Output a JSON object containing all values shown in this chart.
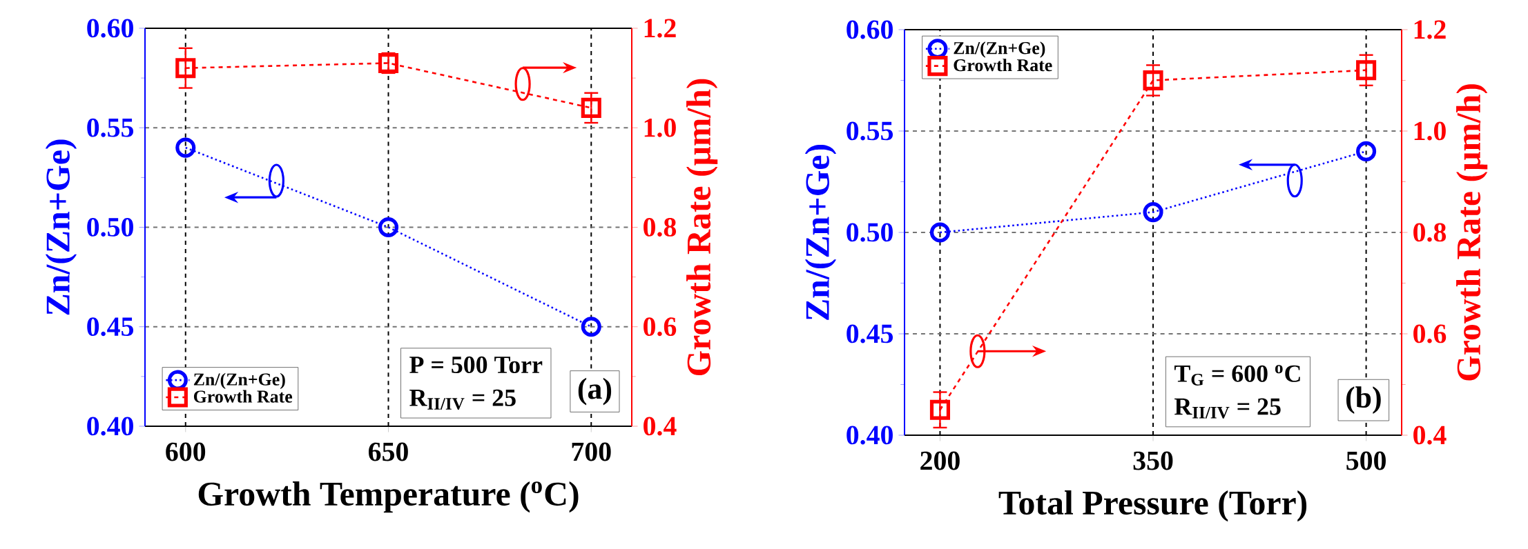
{
  "chart_data": [
    {
      "type": "line",
      "xlabel": "Growth Temperature ($^{o}$C)",
      "ylabel": "Zn/(Zn+Ge)",
      "y2label": "Growth Rate (μm/h)",
      "x": [
        600,
        650,
        700
      ],
      "xlim": [
        590,
        710
      ],
      "xticks": [
        600,
        650,
        700
      ],
      "ylim": [
        0.4,
        0.6
      ],
      "yticks": [
        {
          "value": 0.4,
          "label": "0.40"
        },
        {
          "value": 0.45,
          "label": "0.45"
        },
        {
          "value": 0.5,
          "label": "0.50"
        },
        {
          "value": 0.55,
          "label": "0.55"
        },
        {
          "value": 0.6,
          "label": "0.60"
        }
      ],
      "y2lim": [
        0.4,
        1.2
      ],
      "y2ticks": [
        {
          "value": 0.4,
          "label": "0.4"
        },
        {
          "value": 0.6,
          "label": "0.6"
        },
        {
          "value": 0.8,
          "label": "0.8"
        },
        {
          "value": 1.0,
          "label": "1.0"
        },
        {
          "value": 1.2,
          "label": "1.2"
        }
      ],
      "series": [
        {
          "name": "Zn/(Zn+Ge)",
          "color": "#0000ff",
          "values": [
            0.54,
            0.5,
            0.45
          ],
          "marker": "circle",
          "line_style": "dotted"
        },
        {
          "name": "Growth Rate",
          "color": "#ff0000",
          "values": [
            1.12,
            1.13,
            1.04
          ],
          "errors": [
            0.04,
            0.02,
            0.03
          ],
          "axis": "y2",
          "marker": "square",
          "line_style": "dashed"
        }
      ],
      "grid": true,
      "legend": "bottom left",
      "annotations": [
        "P = 500 Torr",
        "R$_{II/IV}$ = 25",
        "(a)"
      ]
    },
    {
      "type": "line",
      "xlabel": "Total Pressure (Torr)",
      "ylabel": "Zn/(Zn+Ge)",
      "y2label": "Growth Rate (μm/h)",
      "x": [
        200,
        350,
        500
      ],
      "xlim": [
        175,
        525
      ],
      "xticks": [
        200,
        350,
        500
      ],
      "ylim": [
        0.4,
        0.6
      ],
      "yticks": [
        {
          "value": 0.4,
          "label": "0.40"
        },
        {
          "value": 0.45,
          "label": "0.45"
        },
        {
          "value": 0.5,
          "label": "0.50"
        },
        {
          "value": 0.55,
          "label": "0.55"
        },
        {
          "value": 0.6,
          "label": "0.60"
        }
      ],
      "y2lim": [
        0.4,
        1.2
      ],
      "y2ticks": [
        {
          "value": 0.4,
          "label": "0.4"
        },
        {
          "value": 0.6,
          "label": "0.6"
        },
        {
          "value": 0.8,
          "label": "0.8"
        },
        {
          "value": 1.0,
          "label": "1.0"
        },
        {
          "value": 1.2,
          "label": "1.2"
        }
      ],
      "series": [
        {
          "name": "Zn/(Zn+Ge)",
          "color": "#0000ff",
          "values": [
            0.5,
            0.51,
            0.54
          ],
          "marker": "circle",
          "line_style": "dotted"
        },
        {
          "name": "Growth Rate",
          "color": "#ff0000",
          "values": [
            0.45,
            1.1,
            1.12
          ],
          "errors": [
            0.035,
            0.03,
            0.03
          ],
          "axis": "y2",
          "marker": "square",
          "line_style": "dashed"
        }
      ],
      "grid": true,
      "legend": "top left",
      "annotations": [
        "T$_{G}$ = 600 $^{o}$C",
        "R$_{II/IV}$ = 25",
        "(b)"
      ]
    }
  ]
}
